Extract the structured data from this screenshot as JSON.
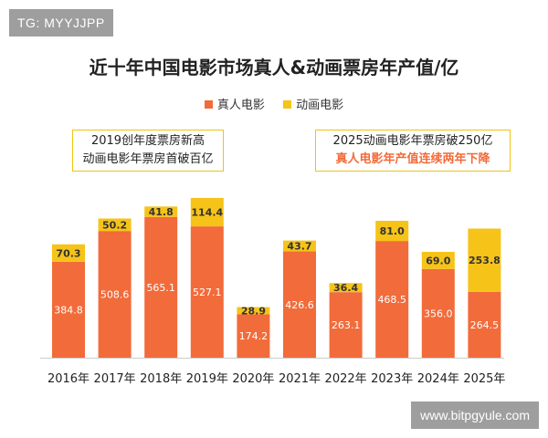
{
  "tag_label": "TG: MYYJJPP",
  "watermark": "www.bitpgyule.com",
  "colors": {
    "live": "#f26b3a",
    "anim": "#f6c319"
  },
  "annotations": [
    {
      "lines": [
        "2019创年度票房新高",
        "动画电影年票房首破百亿"
      ]
    },
    {
      "lines": [
        "2025动画电影年票房破250亿",
        "真人电影年产值连续两年下降"
      ]
    }
  ],
  "chart_data": {
    "type": "bar",
    "stacked": true,
    "title": "近十年中国电影市场真人&动画票房年产值/亿",
    "legend_position": "top",
    "categories": [
      "2016年",
      "2017年",
      "2018年",
      "2019年",
      "2020年",
      "2021年",
      "2022年",
      "2023年",
      "2024年",
      "2025年"
    ],
    "series": [
      {
        "name": "真人电影",
        "values": [
          384.8,
          508.6,
          565.1,
          527.1,
          174.2,
          426.6,
          263.1,
          468.5,
          356.0,
          264.5
        ]
      },
      {
        "name": "动画电影",
        "values": [
          70.3,
          50.2,
          41.8,
          114.4,
          28.9,
          43.7,
          36.4,
          81.0,
          69.0,
          253.8
        ]
      }
    ],
    "ylim": [
      0,
      650
    ],
    "grid": false
  }
}
